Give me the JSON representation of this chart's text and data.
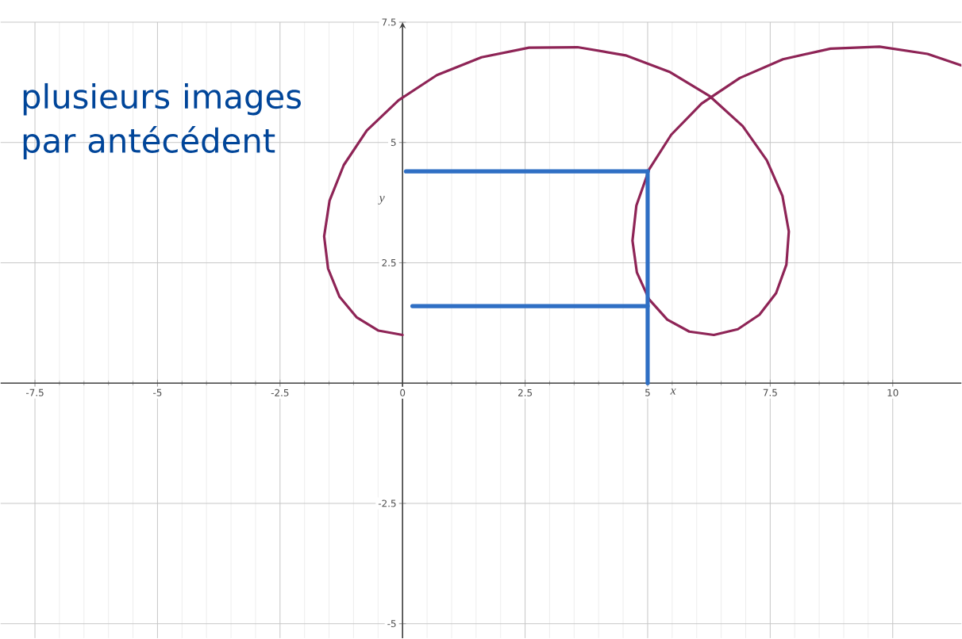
{
  "chart_data": {
    "type": "line",
    "xlabel": "x",
    "ylabel": "y",
    "annotations": [
      "plusieurs images par antécédent"
    ],
    "xlim": [
      -8.2,
      11.4
    ],
    "ylim": [
      -5.3,
      7.5
    ],
    "xticks": [
      -7.5,
      -5,
      -2.5,
      0,
      2.5,
      5,
      7.5,
      10
    ],
    "yticks": [
      -5,
      -2.5,
      2.5,
      5,
      7.5
    ],
    "grid": true,
    "marker": "none",
    "line_style": "solid",
    "series": [
      {
        "color": "#8e2456",
        "x": [
          0,
          -0.49,
          -0.94,
          -1.29,
          -1.52,
          -1.6,
          -1.49,
          -1.2,
          -0.73,
          -0.08,
          0.7,
          1.61,
          2.58,
          3.57,
          4.55,
          5.46,
          6.27,
          6.94,
          7.43,
          7.75,
          7.88,
          7.83,
          7.62,
          7.28,
          6.84,
          6.35,
          5.85,
          5.4,
          5.03,
          4.78,
          4.69,
          4.77,
          5.03,
          5.48,
          6.1,
          6.88,
          7.76,
          8.73,
          9.73,
          10.71,
          11.4
        ],
        "values": [
          1,
          1.09,
          1.37,
          1.8,
          2.38,
          3.05,
          3.79,
          4.53,
          5.25,
          5.88,
          6.4,
          6.77,
          6.97,
          6.98,
          6.81,
          6.46,
          5.96,
          5.34,
          4.63,
          3.89,
          3.15,
          2.46,
          1.87,
          1.42,
          1.12,
          1,
          1.07,
          1.32,
          1.74,
          2.3,
          2.96,
          3.69,
          4.44,
          5.16,
          5.81,
          6.34,
          6.73,
          6.95,
          6.99,
          6.84,
          6.6
        ]
      },
      {
        "color": "#2f6fc4",
        "x": [
          0.07,
          5
        ],
        "values": [
          4.4,
          4.4
        ]
      },
      {
        "color": "#2f6fc4",
        "x": [
          0.2,
          5
        ],
        "values": [
          1.6,
          1.6
        ]
      },
      {
        "color": "#2f6fc4",
        "x": [
          5,
          5
        ],
        "values": [
          0,
          4.4
        ]
      }
    ]
  }
}
